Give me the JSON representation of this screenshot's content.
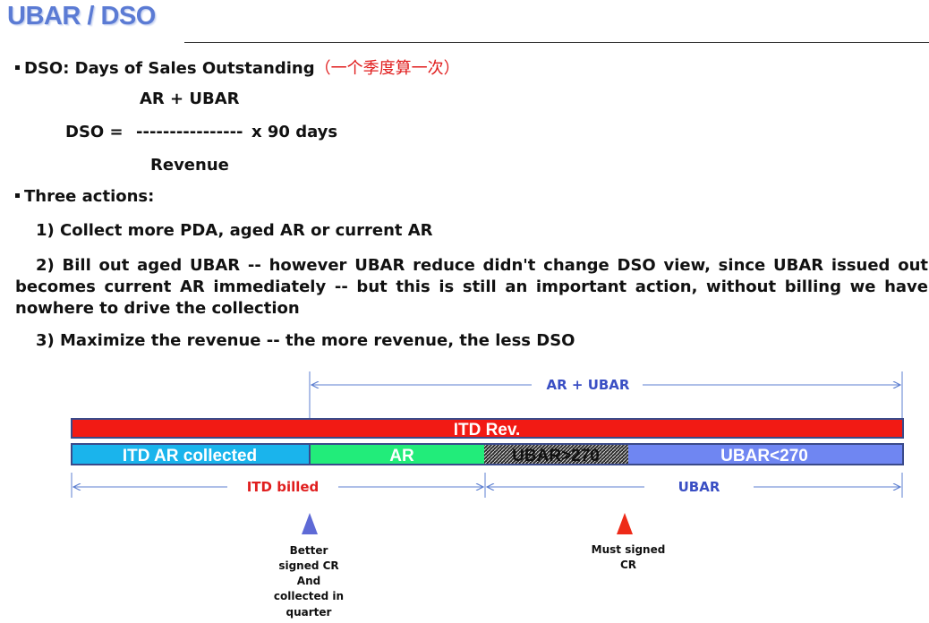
{
  "title": "UBAR / DSO",
  "dso_heading": {
    "text": "DSO: Days of Sales Outstanding",
    "cn_note": "（一个季度算一次）"
  },
  "formula": {
    "numerator": "AR + UBAR",
    "lhs": "DSO =",
    "line": "----------------",
    "multiplier": "x 90 days",
    "denominator": "Revenue"
  },
  "actions_heading": "Three actions:",
  "actions": [
    "1) Collect more PDA, aged AR or current AR",
    "2) Bill out aged UBAR -- however UBAR reduce didn't change DSO view, since UBAR issued out becomes current AR immediately -- but this is still an important action, without billing we have nowhere to drive the collection",
    "3) Maximize the revenue -- the more revenue, the less DSO"
  ],
  "diagram": {
    "top_dim_label": "AR + UBAR",
    "itd_rev_label": "ITD Rev.",
    "segments": [
      {
        "label": "ITD AR collected",
        "color": "#1ab4ec"
      },
      {
        "label": "AR",
        "color": "#22ec7a"
      },
      {
        "label": "UBAR>270",
        "color": "#303030"
      },
      {
        "label": "UBAR<270",
        "color": "#6f86f2"
      }
    ],
    "billed_label": "ITD billed",
    "ubar_label": "UBAR",
    "colors": {
      "itd_rev": "#f21a14",
      "bar_border": "#3a4a8a",
      "dim_line": "#5d7fd0",
      "billed_text": "#e01e1e",
      "ubar_text": "#3a4fc4",
      "blue_triangle": "#5e6ad6",
      "red_triangle": "#ee2a18"
    },
    "notes": {
      "better": [
        "Better",
        "signed CR",
        "And",
        "collected in",
        "quarter"
      ],
      "must": [
        "Must signed",
        "CR"
      ]
    }
  }
}
